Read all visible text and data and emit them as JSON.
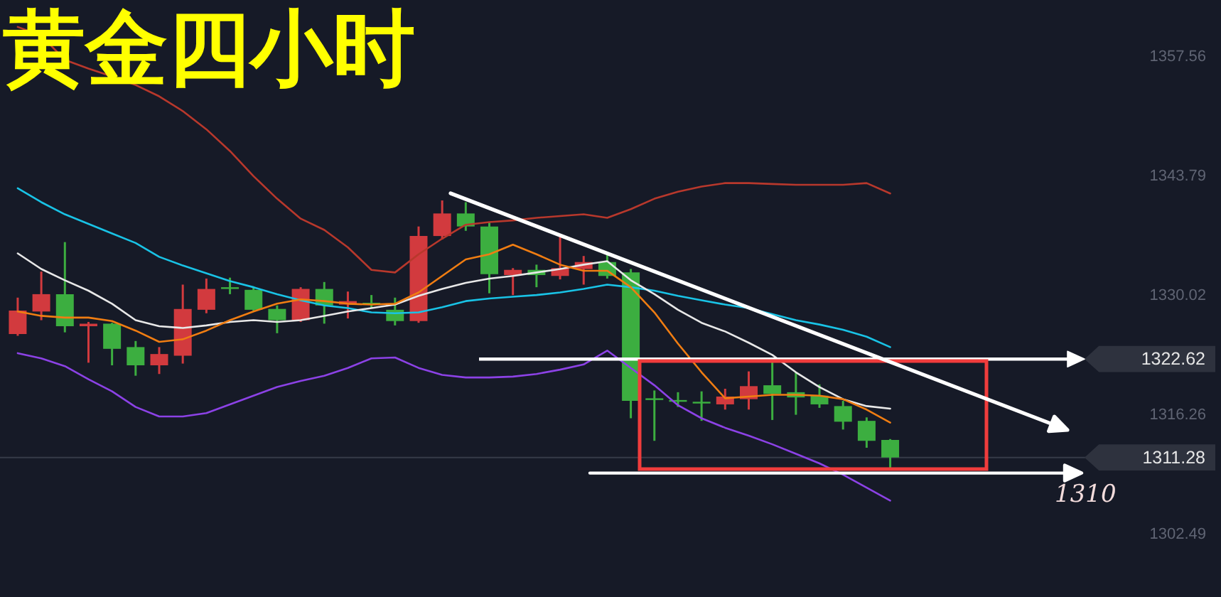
{
  "chart_data": {
    "type": "candlestick",
    "title": "黄金四小时",
    "categories": [
      null,
      null,
      null,
      null,
      null,
      null,
      null,
      null,
      null,
      null,
      null,
      null,
      null,
      null,
      null,
      null,
      null,
      null,
      null,
      null,
      null,
      null,
      null,
      null,
      null,
      null,
      null,
      null,
      null,
      null,
      null,
      null,
      null,
      null,
      null,
      null,
      null,
      null
    ],
    "ohlc": [
      [
        1325.5,
        1329.7,
        1325.3,
        1328.2
      ],
      [
        1328.1,
        1332.7,
        1327.1,
        1330.1
      ],
      [
        1330.1,
        1336.1,
        1325.7,
        1326.4
      ],
      [
        1326.4,
        1326.9,
        1322.2,
        1326.7
      ],
      [
        1326.7,
        1326.8,
        1321.9,
        1323.8
      ],
      [
        1324.0,
        1324.7,
        1320.7,
        1321.9
      ],
      [
        1321.9,
        1324.0,
        1320.9,
        1323.2
      ],
      [
        1323.0,
        1331.2,
        1322.1,
        1328.4
      ],
      [
        1328.3,
        1331.9,
        1327.9,
        1330.7
      ],
      [
        1330.9,
        1332.0,
        1330.1,
        1330.7
      ],
      [
        1330.6,
        1331.0,
        1328.2,
        1328.3
      ],
      [
        1328.4,
        1328.8,
        1325.6,
        1327.1
      ],
      [
        1327.1,
        1330.9,
        1326.9,
        1330.7
      ],
      [
        1330.7,
        1331.5,
        1326.7,
        1328.8
      ],
      [
        1328.9,
        1330.4,
        1327.3,
        1329.3
      ],
      [
        1329.1,
        1330.0,
        1328.5,
        1328.9
      ],
      [
        1328.3,
        1329.7,
        1326.5,
        1327.0
      ],
      [
        1327.0,
        1337.9,
        1326.8,
        1336.8
      ],
      [
        1336.8,
        1340.9,
        1336.4,
        1339.4
      ],
      [
        1339.4,
        1340.7,
        1337.4,
        1337.9
      ],
      [
        1337.9,
        1338.4,
        1330.2,
        1332.4
      ],
      [
        1332.3,
        1333.1,
        1330.0,
        1332.9
      ],
      [
        1332.9,
        1333.5,
        1330.9,
        1332.3
      ],
      [
        1332.2,
        1336.7,
        1331.8,
        1333.1
      ],
      [
        1333.0,
        1334.5,
        1331.2,
        1333.8
      ],
      [
        1333.8,
        1334.6,
        1331.9,
        1332.2
      ],
      [
        1332.6,
        1333.0,
        1315.8,
        1317.8
      ],
      [
        1318.1,
        1319.0,
        1313.2,
        1317.9
      ],
      [
        1317.9,
        1318.8,
        1317.1,
        1317.7
      ],
      [
        1317.7,
        1318.9,
        1315.5,
        1317.5
      ],
      [
        1317.4,
        1319.2,
        1316.8,
        1318.3
      ],
      [
        1318.0,
        1321.2,
        1316.8,
        1319.5
      ],
      [
        1319.6,
        1322.4,
        1315.6,
        1318.6
      ],
      [
        1318.8,
        1321.1,
        1316.2,
        1318.2
      ],
      [
        1318.4,
        1319.7,
        1317.0,
        1317.4
      ],
      [
        1317.2,
        1317.8,
        1314.5,
        1315.4
      ],
      [
        1315.5,
        1315.9,
        1312.4,
        1313.2
      ],
      [
        1313.3,
        1313.4,
        1310.1,
        1311.28
      ]
    ],
    "colors": [
      "#d23a3e",
      "#d23a3e",
      "#3cae40",
      "#d23a3e",
      "#3cae40",
      "#3cae40",
      "#d23a3e",
      "#d23a3e",
      "#d23a3e",
      "#3cae40",
      "#3cae40",
      "#3cae40",
      "#d23a3e",
      "#3cae40",
      "#d23a3e",
      "#3cae40",
      "#3cae40",
      "#d23a3e",
      "#d23a3e",
      "#3cae40",
      "#3cae40",
      "#d23a3e",
      "#3cae40",
      "#d23a3e",
      "#d23a3e",
      "#3cae40",
      "#3cae40",
      "#3cae40",
      "#3cae40",
      "#3cae40",
      "#d23a3e",
      "#d23a3e",
      "#3cae40",
      "#3cae40",
      "#3cae40",
      "#3cae40",
      "#3cae40",
      "#3cae40"
    ],
    "series": [
      {
        "type": "line",
        "color": "#b8382c",
        "values": [
          1360.9,
          1359.9,
          1357.1,
          1356.1,
          1355.2,
          1354.2,
          1352.9,
          1351.2,
          1349.1,
          1346.6,
          1343.7,
          1341.1,
          1338.8,
          1337.5,
          1335.5,
          1332.9,
          1332.6,
          1334.7,
          1336.5,
          1338.1,
          1338.4,
          1338.6,
          1338.9,
          1339.1,
          1339.3,
          1338.9,
          1339.9,
          1341.1,
          1341.9,
          1342.5,
          1342.9,
          1342.9,
          1342.8,
          1342.7,
          1342.7,
          1342.7,
          1342.9,
          1341.7
        ]
      },
      {
        "type": "line",
        "color": "#19c3e6",
        "values": [
          1342.3,
          1340.7,
          1339.3,
          1338.2,
          1337.1,
          1336.0,
          1334.4,
          1333.4,
          1332.5,
          1331.6,
          1330.9,
          1330.1,
          1329.4,
          1328.8,
          1328.5,
          1328.0,
          1327.9,
          1328.0,
          1328.6,
          1329.3,
          1329.6,
          1329.8,
          1330.0,
          1330.3,
          1330.7,
          1331.2,
          1330.9,
          1330.5,
          1329.9,
          1329.4,
          1328.9,
          1328.5,
          1327.8,
          1327.1,
          1326.6,
          1326.0,
          1325.2,
          1324.0
        ]
      },
      {
        "type": "line",
        "color": "#e8e8e8",
        "values": [
          1334.8,
          1333.0,
          1331.7,
          1330.5,
          1329.0,
          1327.1,
          1326.4,
          1326.2,
          1326.5,
          1326.9,
          1327.1,
          1326.9,
          1327.1,
          1327.6,
          1328.1,
          1328.5,
          1328.9,
          1329.9,
          1330.7,
          1331.4,
          1331.9,
          1332.2,
          1332.6,
          1333.0,
          1333.5,
          1333.9,
          1331.7,
          1330.1,
          1328.3,
          1326.8,
          1325.8,
          1324.5,
          1323.1,
          1321.1,
          1319.4,
          1318.0,
          1317.2,
          1316.9
        ]
      },
      {
        "type": "line",
        "color": "#f07d12",
        "values": [
          1328.1,
          1327.6,
          1327.4,
          1327.4,
          1327.0,
          1325.9,
          1324.6,
          1324.9,
          1325.9,
          1327.1,
          1328.1,
          1329.0,
          1329.5,
          1329.3,
          1329.0,
          1328.9,
          1329.0,
          1330.3,
          1332.2,
          1334.1,
          1334.7,
          1335.8,
          1334.7,
          1333.5,
          1332.8,
          1332.8,
          1330.9,
          1328.0,
          1324.4,
          1321.1,
          1318.1,
          1318.3,
          1318.5,
          1318.5,
          1318.4,
          1318.0,
          1316.8,
          1315.3
        ]
      },
      {
        "type": "line",
        "color": "#8c42e6",
        "values": [
          1323.3,
          1322.7,
          1321.8,
          1320.3,
          1318.9,
          1317.1,
          1316.0,
          1316.0,
          1316.4,
          1317.4,
          1318.4,
          1319.4,
          1320.1,
          1320.7,
          1321.6,
          1322.7,
          1322.8,
          1321.6,
          1320.8,
          1320.5,
          1320.5,
          1320.6,
          1320.9,
          1321.4,
          1322.0,
          1323.6,
          1321.6,
          1319.6,
          1317.3,
          1315.8,
          1314.7,
          1313.8,
          1312.8,
          1311.7,
          1310.6,
          1309.3,
          1307.8,
          1306.3
        ]
      }
    ],
    "ylim": [
      1295.2,
      1364
    ],
    "yticks": [
      1357.56,
      1343.79,
      1330.02,
      1316.26,
      1302.49
    ],
    "ref_lines": [
      {
        "axis": "y",
        "value": 1322.62,
        "label": "1322.62",
        "color": "#ffffff"
      },
      {
        "axis": "y",
        "value": 1311.28,
        "label": "1311.28"
      }
    ],
    "annotations": [
      "1310"
    ],
    "tick_labels": "y"
  }
}
